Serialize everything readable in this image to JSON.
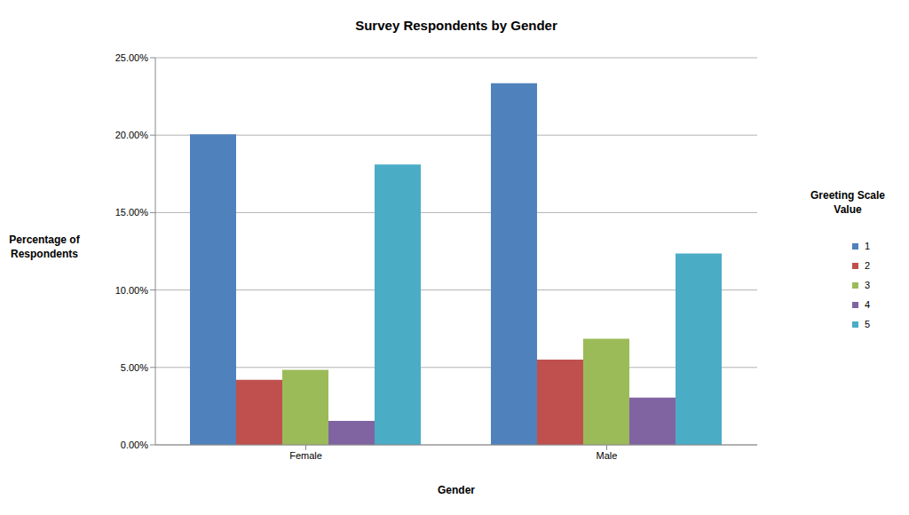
{
  "chart_data": {
    "type": "bar",
    "title": "Survey Respondents by Gender",
    "x_label": "Gender",
    "y_label": "Percentage of Respondents",
    "legend_title": "Greeting Scale Value",
    "categories": [
      "Female",
      "Male"
    ],
    "series": [
      {
        "name": "1",
        "color": "#4f81bd",
        "values": [
          20.05,
          23.35
        ]
      },
      {
        "name": "2",
        "color": "#c0504d",
        "values": [
          4.2,
          5.5
        ]
      },
      {
        "name": "3",
        "color": "#9bbb59",
        "values": [
          4.85,
          6.85
        ]
      },
      {
        "name": "4",
        "color": "#8064a2",
        "values": [
          1.55,
          3.05
        ]
      },
      {
        "name": "5",
        "color": "#4bacc6",
        "values": [
          18.1,
          12.35
        ]
      }
    ],
    "ylim": [
      0,
      25
    ],
    "yticks": [
      {
        "value": 0,
        "label": "0.00%"
      },
      {
        "value": 5,
        "label": "5.00%"
      },
      {
        "value": 10,
        "label": "10.00%"
      },
      {
        "value": 15,
        "label": "15.00%"
      },
      {
        "value": 20,
        "label": "20.00%"
      },
      {
        "value": 25,
        "label": "25.00%"
      }
    ],
    "grid": true,
    "legend": "right"
  }
}
